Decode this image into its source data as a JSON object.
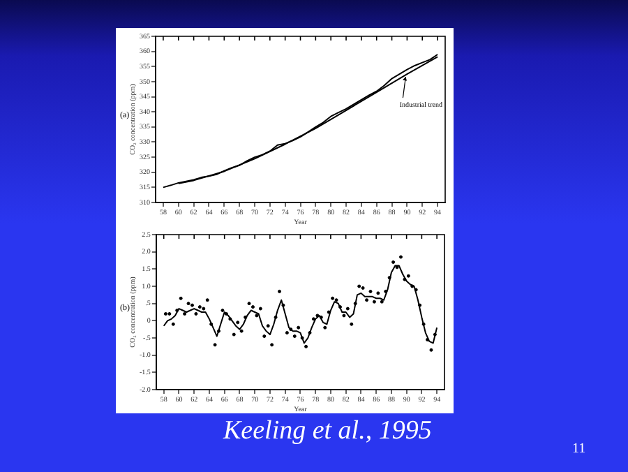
{
  "chart_data": [
    {
      "type": "line",
      "xlabel": "Year",
      "ylabel": "CO₂ concentration (ppm)",
      "annotations": [
        "(a)"
      ],
      "xlim": [
        57,
        95
      ],
      "xticks": [
        58,
        60,
        62,
        64,
        66,
        68,
        70,
        72,
        74,
        76,
        78,
        80,
        82,
        84,
        86,
        88,
        90,
        92,
        94
      ],
      "ylim": [
        310,
        365
      ],
      "yticks": [
        310,
        315,
        320,
        325,
        330,
        335,
        340,
        345,
        350,
        355,
        360,
        365
      ],
      "grid": false,
      "legend": false,
      "series": [
        {
          "color": "#000000",
          "x": [
            58,
            59,
            60,
            61,
            62,
            63,
            64,
            65,
            66,
            67,
            68,
            69,
            70,
            71,
            72,
            73,
            74,
            75,
            76,
            77,
            78,
            79,
            80,
            81,
            82,
            83,
            84,
            85,
            86,
            87,
            88,
            89,
            90,
            91,
            92,
            93,
            94
          ],
          "values": [
            315,
            315.7,
            316.5,
            317,
            317.5,
            318.3,
            318.7,
            319.3,
            320.5,
            321.5,
            322.3,
            323.8,
            325,
            325.8,
            327,
            329,
            329.5,
            330.5,
            331.7,
            333.3,
            335,
            336.5,
            338.5,
            339.8,
            341,
            342.5,
            344,
            345.5,
            346.8,
            348.7,
            351,
            352.5,
            354,
            355.3,
            356.3,
            357.3,
            359
          ]
        },
        {
          "name": "Industrial trend",
          "color": "#000000",
          "x": [
            60,
            62,
            66,
            70,
            74,
            78,
            82,
            86,
            90,
            94
          ],
          "values": [
            316.3,
            317.3,
            320.3,
            324.5,
            329.3,
            334.5,
            340.5,
            346.5,
            352.5,
            358.2
          ]
        }
      ]
    },
    {
      "type": "line",
      "xlabel": "Year",
      "ylabel": "CO₂ concentration (ppm)",
      "annotations": [
        "(b)",
        "Keeling et al., 1995",
        "11"
      ],
      "xlim": [
        57,
        95
      ],
      "xticks": [
        58,
        60,
        62,
        64,
        66,
        68,
        70,
        72,
        74,
        76,
        78,
        80,
        82,
        84,
        86,
        88,
        90,
        92,
        94
      ],
      "ylim": [
        -2,
        2.5
      ],
      "yticks": [
        {
          "value": -2,
          "label": "-2.0"
        },
        {
          "value": -1.5,
          "label": "-1.5"
        },
        {
          "value": -1,
          "label": "-1.0"
        },
        {
          "value": -0.5,
          "label": "-.5"
        },
        0,
        {
          "value": 0.5,
          "label": ".5"
        },
        {
          "value": 1,
          "label": "1.0"
        },
        {
          "value": 1.5,
          "label": "1.5"
        },
        {
          "value": 2,
          "label": "2.0"
        },
        {
          "value": 2.5,
          "label": "2.5"
        }
      ],
      "grid": false,
      "legend": false,
      "series": [
        {
          "type": "scatter",
          "marker": "circle",
          "color": "#000000",
          "x": [
            58.25,
            58.75,
            59.25,
            59.75,
            60.25,
            60.75,
            61.25,
            61.75,
            62.25,
            62.75,
            63.25,
            63.75,
            64.25,
            64.75,
            65.25,
            65.75,
            66.25,
            66.75,
            67.25,
            67.75,
            68.25,
            68.75,
            69.25,
            69.75,
            70.25,
            70.75,
            71.25,
            71.75,
            72.25,
            72.75,
            73.25,
            73.75,
            74.25,
            74.75,
            75.25,
            75.75,
            76.25,
            76.75,
            77.25,
            77.75,
            78.25,
            78.75,
            79.25,
            79.75,
            80.25,
            80.75,
            81.25,
            81.75,
            82.25,
            82.75,
            83.25,
            83.75,
            84.25,
            84.75,
            85.25,
            85.75,
            86.25,
            86.75,
            87.25,
            87.75,
            88.25,
            88.75,
            89.25,
            89.75,
            90.25,
            90.75,
            91.25,
            91.75,
            92.25,
            92.75,
            93.25,
            93.75
          ],
          "values": [
            0.2,
            0.2,
            -0.1,
            0.3,
            0.65,
            0.2,
            0.5,
            0.45,
            0.2,
            0.4,
            0.35,
            0.6,
            -0.1,
            -0.7,
            -0.3,
            0.3,
            0.2,
            0.05,
            -0.4,
            -0.05,
            -0.3,
            0.1,
            0.5,
            0.4,
            0.15,
            0.35,
            -0.45,
            -0.15,
            -0.7,
            0.1,
            0.85,
            0.45,
            -0.35,
            -0.25,
            -0.45,
            -0.2,
            -0.5,
            -0.75,
            -0.35,
            0.05,
            0.15,
            0.1,
            -0.2,
            0.25,
            0.65,
            0.6,
            0.4,
            0.15,
            0.35,
            -0.1,
            0.5,
            1.0,
            0.95,
            0.6,
            0.85,
            0.55,
            0.8,
            0.55,
            0.85,
            1.25,
            1.7,
            1.55,
            1.85,
            1.2,
            1.3,
            1.0,
            0.9,
            0.45,
            -0.1,
            -0.55,
            -0.85,
            -0.4
          ]
        },
        {
          "type": "line",
          "color": "#000000",
          "x": [
            58,
            58.5,
            59,
            59.5,
            60,
            60.5,
            61,
            61.5,
            62,
            62.5,
            63,
            63.5,
            64,
            64.5,
            65,
            65.5,
            66,
            66.5,
            67,
            67.5,
            68,
            68.5,
            69,
            69.5,
            70,
            70.5,
            71,
            71.5,
            72,
            72.5,
            73,
            73.5,
            74,
            74.5,
            75,
            75.5,
            76,
            76.5,
            77,
            77.5,
            78,
            78.5,
            79,
            79.5,
            80,
            80.5,
            81,
            81.5,
            82,
            82.5,
            83,
            83.5,
            84,
            84.5,
            85,
            85.5,
            86,
            86.5,
            87,
            87.5,
            88,
            88.5,
            89,
            89.5,
            90,
            90.5,
            91,
            91.5,
            92,
            92.5,
            93,
            93.5,
            94
          ],
          "values": [
            -0.15,
            0,
            0.05,
            0.15,
            0.35,
            0.3,
            0.25,
            0.3,
            0.35,
            0.3,
            0.25,
            0.25,
            0.05,
            -0.2,
            -0.45,
            -0.1,
            0.25,
            0.15,
            0,
            -0.15,
            -0.25,
            -0.1,
            0.15,
            0.3,
            0.25,
            0.2,
            -0.15,
            -0.3,
            -0.4,
            -0.1,
            0.3,
            0.6,
            0.2,
            -0.2,
            -0.3,
            -0.3,
            -0.35,
            -0.65,
            -0.5,
            -0.2,
            0.05,
            0.15,
            -0.05,
            -0.1,
            0.3,
            0.55,
            0.5,
            0.25,
            0.25,
            0.1,
            0.2,
            0.75,
            0.8,
            0.7,
            0.7,
            0.7,
            0.65,
            0.65,
            0.6,
            0.9,
            1.4,
            1.6,
            1.6,
            1.35,
            1.15,
            1.05,
            1.0,
            0.6,
            0.1,
            -0.35,
            -0.6,
            -0.65,
            -0.2
          ]
        }
      ]
    }
  ]
}
